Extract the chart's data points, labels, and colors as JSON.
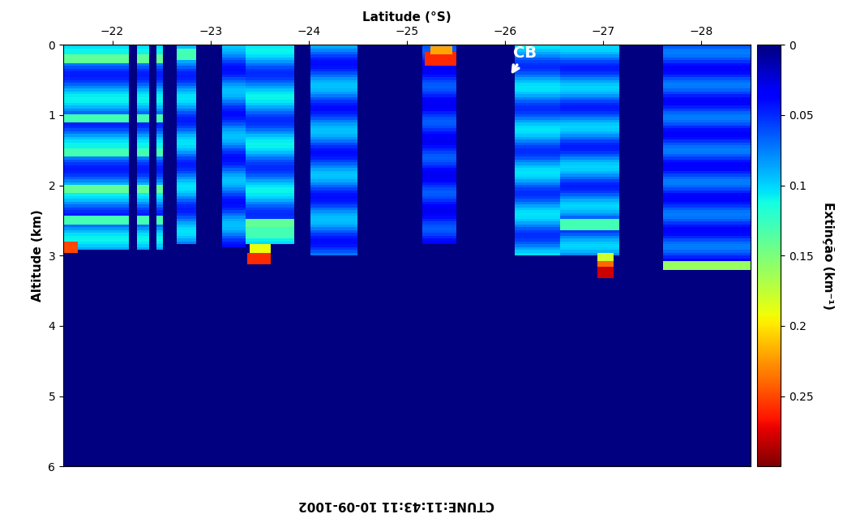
{
  "title": "CTUNE:11:43:11 10-09-1002",
  "xlabel": "Latitude (°S)",
  "ylabel": "Altitude (km)",
  "colorbar_label": "Extinção (km⁻¹)",
  "colorbar_ticks": [
    0,
    0.05,
    0.1,
    0.15,
    0.2,
    0.25
  ],
  "x_ticks": [
    -28,
    -27,
    -26,
    -25,
    -24,
    -23,
    -22
  ],
  "y_ticks": [
    0,
    1,
    2,
    3,
    4,
    5,
    6
  ],
  "xlim": [
    -28.5,
    -21.5
  ],
  "ylim": [
    0,
    6
  ],
  "vmin": 0,
  "vmax": 0.3,
  "cb_label": "CB",
  "figure_bg": "#ffffff"
}
